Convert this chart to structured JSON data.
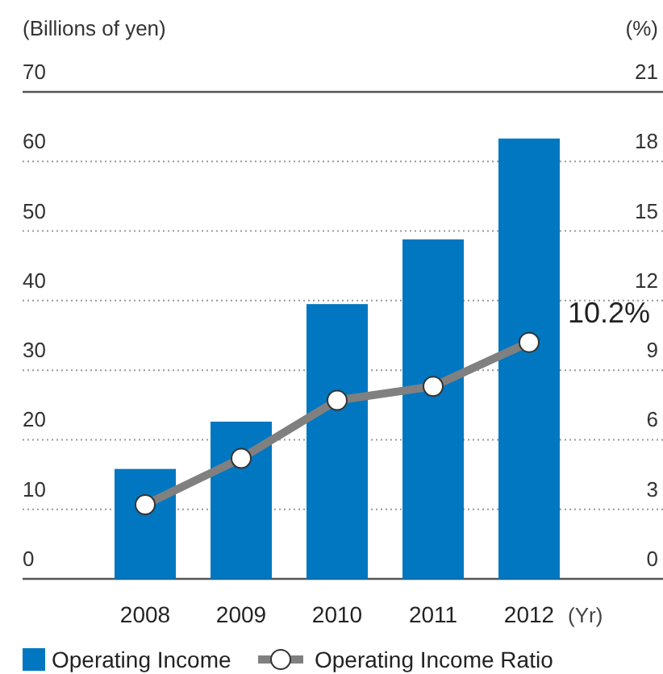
{
  "chart_data": {
    "type": "bar",
    "categories": [
      "2008",
      "2009",
      "2010",
      "2011",
      "2012"
    ],
    "xlabel": "(Yr)",
    "ylabel": "(Billions of yen)",
    "y2label": "(%)",
    "series": [
      {
        "name": "Operating Income",
        "color": "#0077c0",
        "values": [
          15.8,
          22.6,
          39.5,
          48.8,
          63.3
        ]
      },
      {
        "name": "Operating Income Ratio",
        "type": "line",
        "axis": "y2",
        "color": "#808080",
        "values": [
          3.2,
          5.2,
          7.7,
          8.3,
          10.2
        ]
      }
    ],
    "ylim": [
      0,
      70
    ],
    "yticks": [
      0,
      10,
      20,
      30,
      40,
      50,
      60,
      70
    ],
    "y2lim": [
      0,
      21
    ],
    "y2ticks": [
      0,
      3,
      6,
      9,
      12,
      15,
      18,
      21
    ],
    "grid": "y",
    "legend": "bottom",
    "marker": "circle",
    "annotations": [
      "10.2%"
    ]
  }
}
